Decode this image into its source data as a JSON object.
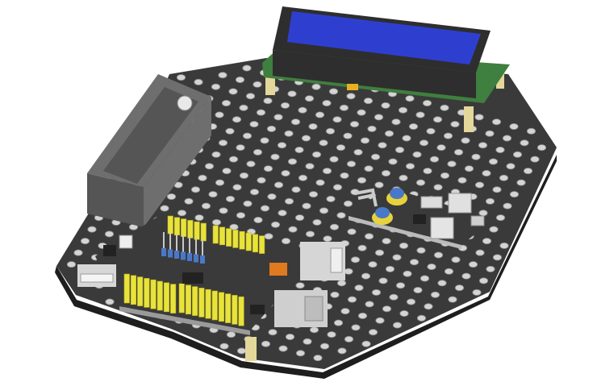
{
  "scene": {
    "background": "#ffffff",
    "colors": {
      "plate_top": "#3a3a3a",
      "plate_edge": "#2a2a2a",
      "plate_bottom_rim": "#1e1e1e",
      "hole": "#d4d4d4",
      "hole_rim": "#8a8a8a",
      "battery_box": "#6e6e6e",
      "battery_box_dark": "#555555",
      "lcd_bezel": "#2e2e2e",
      "lcd_screen": "#2e3fd0",
      "lcd_pcb": "#3f7f3f",
      "standoff": "#e3d79a",
      "header_yellow": "#e8e23c",
      "header_pin": "#c8c8c8",
      "jumper_blue": "#4a78c8",
      "usb_metal": "#d6d6d6",
      "power_jack": "#cfcfcf",
      "chip": "#222222",
      "orange_part": "#e07a1e",
      "small_board": "#3a3a3a"
    },
    "icons": [
      "battery-holder-icon",
      "lcd-display-icon",
      "arduino-board-icon",
      "usb-port-icon",
      "power-jack-icon",
      "sensor-module-icon"
    ]
  }
}
